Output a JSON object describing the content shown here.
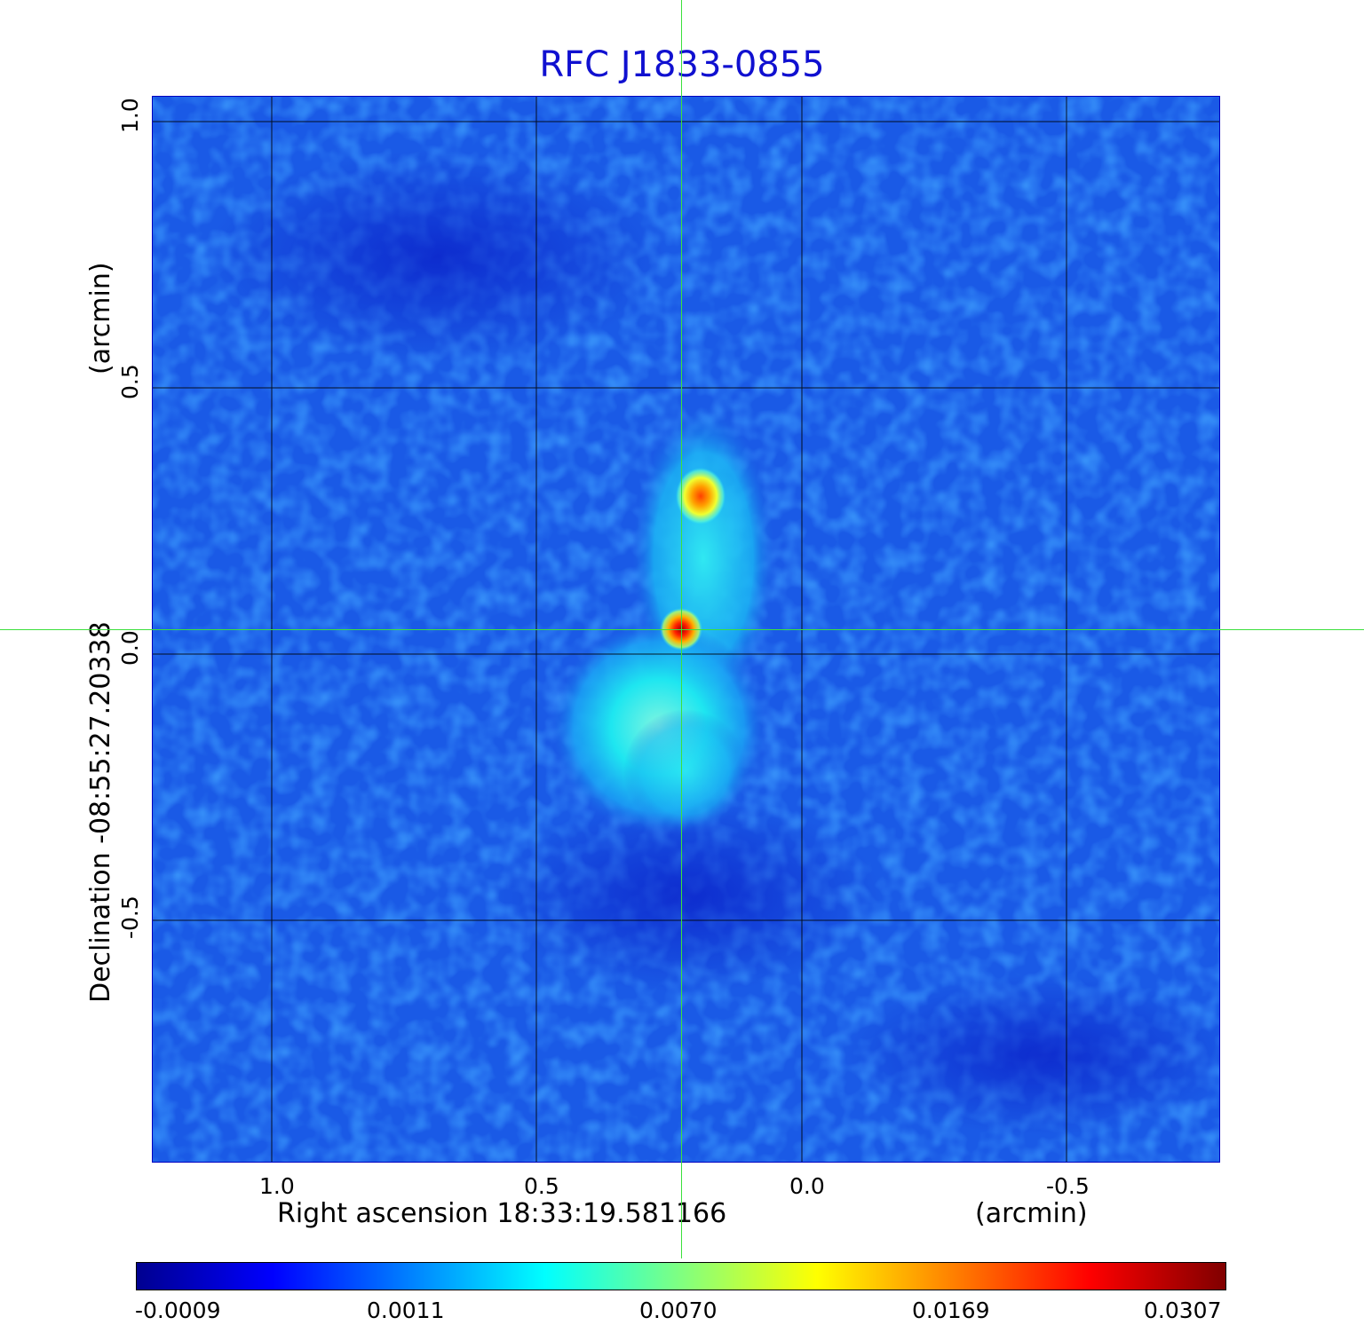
{
  "title": "RFC J1833-0855",
  "xaxis": {
    "label": "Right ascension  18:33:19.581166",
    "unit_label": "(arcmin)",
    "ticks": [
      "1.0",
      "0.5",
      "0.0",
      "-0.5"
    ]
  },
  "yaxis": {
    "label": "Declination  -08:55:27.20338",
    "unit_label": "(arcmin)",
    "ticks": [
      "1.0",
      "0.5",
      "0.0",
      "-0.5"
    ]
  },
  "colorbar": {
    "ticks": [
      "-0.0009",
      "0.0011",
      "0.0070",
      "0.0169",
      "0.0307"
    ],
    "colors": [
      "#000090",
      "#0000ff",
      "#0080ff",
      "#00ffff",
      "#80ff80",
      "#ffff00",
      "#ff8000",
      "#ff0000",
      "#800000"
    ]
  },
  "colors": {
    "background_field": "#1a5ae6",
    "crosshair": "#3ce03c",
    "title": "#1010d0"
  }
}
